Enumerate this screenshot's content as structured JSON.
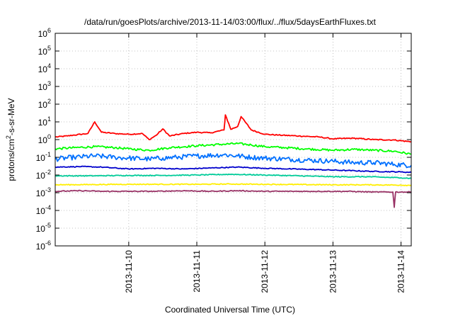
{
  "chart_data": {
    "type": "line",
    "title": "/data/run/goesPlots/archive/2013-11-14/03:00/flux/../flux/5daysEarthFluxes.txt",
    "xlabel": "Coordinated Universal Time (UTC)",
    "ylabel_base": "protons/cm",
    "ylabel_sup": "2",
    "ylabel_rest": "-s-sr-MeV",
    "log_y": true,
    "ylim_exp": [
      -6,
      6
    ],
    "y_ticks": [
      {
        "base": "10",
        "exp": "-6",
        "e": -6
      },
      {
        "base": "10",
        "exp": "-5",
        "e": -5
      },
      {
        "base": "10",
        "exp": "-4",
        "e": -4
      },
      {
        "base": "10",
        "exp": "-3",
        "e": -3
      },
      {
        "base": "10",
        "exp": "-2",
        "e": -2
      },
      {
        "base": "10",
        "exp": "-1",
        "e": -1
      },
      {
        "base": "10",
        "exp": "0",
        "e": 0
      },
      {
        "base": "10",
        "exp": "1",
        "e": 1
      },
      {
        "base": "10",
        "exp": "2",
        "e": 2
      },
      {
        "base": "10",
        "exp": "3",
        "e": 3
      },
      {
        "base": "10",
        "exp": "4",
        "e": 4
      },
      {
        "base": "10",
        "exp": "5",
        "e": 5
      },
      {
        "base": "10",
        "exp": "6",
        "e": 6
      }
    ],
    "xlim_days": [
      8.92,
      14.15
    ],
    "x_ticks": [
      {
        "label": "2013-11-10",
        "day": 10
      },
      {
        "label": "2013-11-11",
        "day": 11
      },
      {
        "label": "2013-11-12",
        "day": 12
      },
      {
        "label": "2013-11-13",
        "day": 13
      },
      {
        "label": "2013-11-14",
        "day": 14
      }
    ],
    "grid": true,
    "series": [
      {
        "color": "#ff0000",
        "x": [
          8.92,
          9.1,
          9.2,
          9.4,
          9.5,
          9.6,
          9.8,
          10.0,
          10.2,
          10.3,
          10.4,
          10.5,
          10.6,
          10.8,
          11.0,
          11.2,
          11.4,
          11.42,
          11.5,
          11.6,
          11.65,
          11.8,
          12.0,
          12.2,
          12.5,
          12.8,
          13.0,
          13.3,
          13.6,
          13.9,
          14.15
        ],
        "y": [
          1.4,
          1.6,
          1.8,
          2.2,
          10,
          2.6,
          2.2,
          2.0,
          2.2,
          1.0,
          1.7,
          4.0,
          1.6,
          2.2,
          2.6,
          2.4,
          3.5,
          25,
          3.8,
          5.5,
          20,
          3.5,
          2.0,
          1.8,
          1.6,
          1.4,
          1.1,
          1.2,
          1.0,
          0.95,
          0.75
        ]
      },
      {
        "color": "#00ff00",
        "x": [
          8.92,
          9.2,
          9.5,
          9.8,
          10.0,
          10.3,
          10.6,
          11.0,
          11.4,
          11.6,
          11.8,
          12.0,
          12.3,
          12.6,
          13.0,
          13.3,
          13.6,
          13.9,
          14.15
        ],
        "y": [
          0.3,
          0.35,
          0.4,
          0.35,
          0.3,
          0.25,
          0.35,
          0.45,
          0.55,
          0.6,
          0.5,
          0.4,
          0.35,
          0.3,
          0.25,
          0.28,
          0.25,
          0.22,
          0.15
        ]
      },
      {
        "color": "#0070ff",
        "x": [
          8.92,
          9.2,
          9.5,
          9.8,
          10.0,
          10.3,
          10.5,
          10.7,
          11.0,
          11.4,
          11.6,
          11.8,
          12.0,
          12.3,
          12.6,
          13.0,
          13.3,
          13.6,
          13.9,
          14.15
        ],
        "y": [
          0.08,
          0.1,
          0.12,
          0.1,
          0.09,
          0.08,
          0.09,
          0.1,
          0.12,
          0.14,
          0.12,
          0.1,
          0.09,
          0.08,
          0.07,
          0.06,
          0.05,
          0.05,
          0.04,
          0.035
        ]
      },
      {
        "color": "#0000cc",
        "x": [
          8.92,
          9.3,
          9.6,
          10.0,
          10.4,
          10.8,
          11.2,
          11.6,
          12.0,
          12.4,
          12.8,
          13.2,
          13.6,
          14.0,
          14.15
        ],
        "y": [
          0.028,
          0.03,
          0.028,
          0.022,
          0.024,
          0.022,
          0.025,
          0.028,
          0.024,
          0.022,
          0.02,
          0.018,
          0.016,
          0.015,
          0.014
        ]
      },
      {
        "color": "#00cc99",
        "x": [
          8.92,
          9.5,
          10.0,
          10.5,
          11.0,
          11.5,
          12.0,
          12.5,
          13.0,
          13.5,
          14.0,
          14.15
        ],
        "y": [
          0.009,
          0.009,
          0.0095,
          0.0095,
          0.01,
          0.011,
          0.01,
          0.009,
          0.008,
          0.008,
          0.007,
          0.0065
        ]
      },
      {
        "color": "#ffee00",
        "x": [
          8.92,
          9.5,
          10.0,
          10.5,
          11.0,
          11.5,
          12.0,
          12.5,
          13.0,
          13.5,
          14.0,
          14.15
        ],
        "y": [
          0.0028,
          0.0029,
          0.003,
          0.003,
          0.003,
          0.0031,
          0.003,
          0.0029,
          0.0028,
          0.0028,
          0.0027,
          0.0026
        ]
      },
      {
        "color": "#993366",
        "x": [
          8.92,
          9.3,
          9.6,
          10.0,
          10.4,
          10.8,
          11.2,
          11.6,
          12.0,
          12.4,
          12.8,
          13.2,
          13.6,
          13.88,
          13.9,
          13.92,
          14.0,
          14.15
        ],
        "y": [
          0.0012,
          0.0013,
          0.0012,
          0.0012,
          0.0012,
          0.0013,
          0.0012,
          0.0013,
          0.0012,
          0.0012,
          0.0012,
          0.0012,
          0.0011,
          0.0011,
          0.00015,
          0.0011,
          0.0011,
          0.0011
        ]
      }
    ]
  }
}
